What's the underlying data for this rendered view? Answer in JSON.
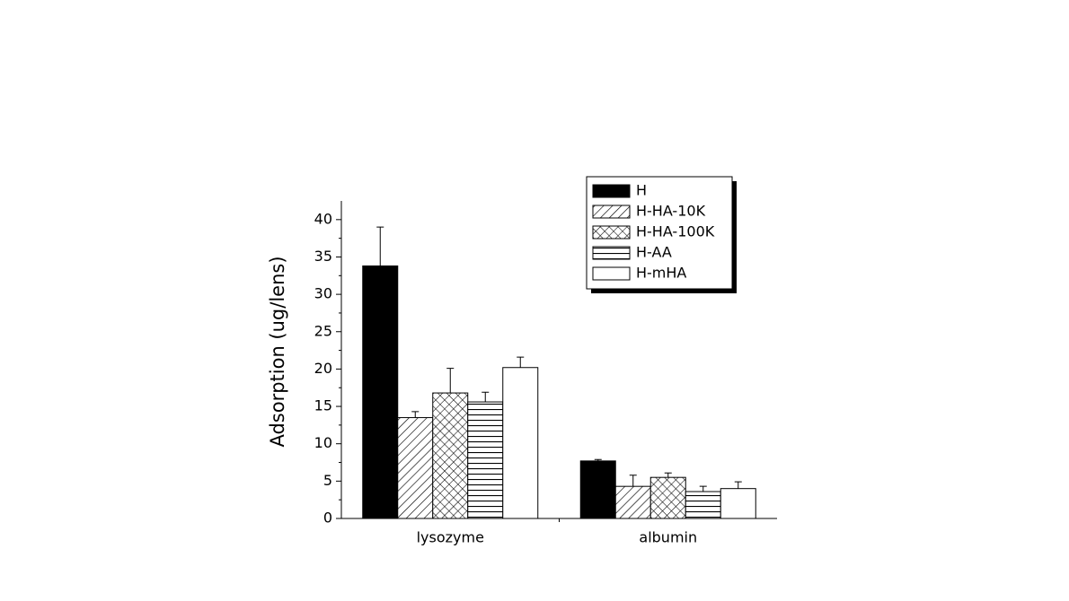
{
  "chart_data": {
    "type": "bar",
    "y_label": "Adsorption (ug/lens)",
    "categories": [
      "lysozyme",
      "albumin"
    ],
    "ylim": [
      0,
      42.5
    ],
    "yticks": [
      0,
      5,
      10,
      15,
      20,
      25,
      30,
      35,
      40
    ],
    "legend": "top-right",
    "series": [
      {
        "name": "H",
        "color": "#000000",
        "hatch": "solid",
        "values": [
          33.8,
          7.7
        ],
        "errors": [
          5.2,
          0.2
        ]
      },
      {
        "name": "H-HA-10K",
        "color": "#000000",
        "hatch": "diagonal",
        "values": [
          13.5,
          4.3
        ],
        "errors": [
          0.8,
          1.5
        ]
      },
      {
        "name": "H-HA-100K",
        "color": "#000000",
        "hatch": "cross",
        "values": [
          16.8,
          5.5
        ],
        "errors": [
          3.3,
          0.6
        ]
      },
      {
        "name": "H-AA",
        "color": "#000000",
        "hatch": "horizontal",
        "values": [
          15.6,
          3.6
        ],
        "errors": [
          1.3,
          0.7
        ]
      },
      {
        "name": "H-mHA",
        "color": "#000000",
        "hatch": "none",
        "values": [
          20.2,
          4.0
        ],
        "errors": [
          1.4,
          0.9
        ]
      }
    ]
  }
}
